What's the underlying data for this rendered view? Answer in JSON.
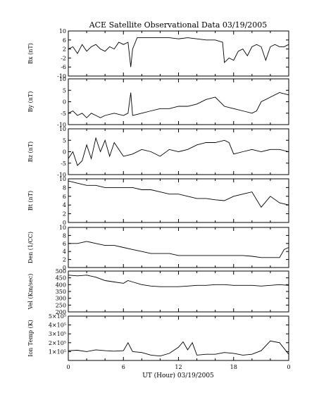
{
  "chart_data": {
    "type": "line",
    "title": "ACE Satellite Observational Data  03/19/2005",
    "xlabel": "UT (Hour)  03/19/2005",
    "x_ticks": [
      "0",
      "6",
      "12",
      "18",
      "0"
    ],
    "xlim": [
      0,
      24
    ],
    "line_color": "#000000",
    "grid": false,
    "panels": [
      {
        "ylabel": "Bx (nT)",
        "ylim": [
          -10,
          10
        ],
        "y_ticks": [
          "10",
          "6",
          "2",
          "-2",
          "-6",
          "-10"
        ],
        "series": [
          {
            "x": [
              0,
              0.5,
              1,
              1.5,
              2,
              2.5,
              3,
              3.5,
              4,
              4.5,
              5,
              5.5,
              6,
              6.5,
              6.8,
              7,
              7.5,
              8,
              9,
              10,
              11,
              12,
              13,
              14,
              15,
              16,
              16.8,
              17,
              17.5,
              18,
              18.5,
              19,
              19.5,
              20,
              20.5,
              21,
              21.5,
              22,
              22.5,
              23,
              23.5,
              24
            ],
            "y": [
              2,
              3,
              0,
              4,
              1,
              3,
              4,
              2,
              1,
              3,
              2,
              5,
              4,
              5,
              -6,
              2,
              7,
              7,
              7,
              7,
              7,
              6.5,
              7,
              6.5,
              6,
              6,
              5,
              -4,
              -2,
              -3,
              1,
              2,
              -1,
              3,
              4,
              3,
              -3,
              3,
              4,
              3,
              3,
              4
            ]
          }
        ]
      },
      {
        "ylabel": "By (nT)",
        "ylim": [
          -10,
          10
        ],
        "y_ticks": [
          "10",
          "5",
          "0",
          "-5",
          "-10"
        ],
        "series": [
          {
            "x": [
              0,
              0.5,
              1,
              1.5,
              2,
              2.5,
              3,
              3.5,
              4,
              5,
              6,
              6.5,
              6.8,
              7,
              8,
              9,
              10,
              11,
              12,
              13,
              14,
              15,
              16,
              17,
              18,
              19,
              20,
              20.5,
              21,
              22,
              23,
              24
            ],
            "y": [
              -5,
              -4,
              -6,
              -5,
              -7,
              -5,
              -6,
              -7,
              -6,
              -5,
              -6,
              -5,
              4,
              -6,
              -5,
              -4,
              -3,
              -3,
              -2,
              -2,
              -1,
              1,
              2,
              -2,
              -3,
              -4,
              -5,
              -4,
              0,
              2,
              4,
              3
            ]
          }
        ]
      },
      {
        "ylabel": "Bz (nT)",
        "ylim": [
          -10,
          10
        ],
        "y_ticks": [
          "10",
          "5",
          "0",
          "-5",
          "-10"
        ],
        "series": [
          {
            "x": [
              0,
              0.5,
              1,
              1.5,
              2,
              2.5,
              3,
              3.5,
              4,
              4.5,
              5,
              5.5,
              6,
              7,
              8,
              9,
              10,
              11,
              12,
              13,
              14,
              15,
              16,
              17,
              17.5,
              18,
              19,
              20,
              21,
              22,
              23,
              24
            ],
            "y": [
              -3,
              0,
              -6,
              -4,
              3,
              -3,
              6,
              0,
              5,
              -2,
              4,
              1,
              -2,
              -1,
              1,
              0,
              -2,
              1,
              0,
              1,
              3,
              4,
              4,
              5,
              4,
              -1,
              0,
              1,
              0,
              1,
              1,
              0
            ]
          }
        ]
      },
      {
        "ylabel": "Bt (nT)",
        "ylim": [
          0,
          10
        ],
        "y_ticks": [
          "10",
          "8",
          "6",
          "4",
          "2",
          "0"
        ],
        "series": [
          {
            "x": [
              0,
              1,
              2,
              3,
              4,
              5,
              6,
              7,
              8,
              9,
              10,
              11,
              12,
              13,
              14,
              15,
              16,
              17,
              18,
              19,
              20,
              21,
              22,
              23,
              24
            ],
            "y": [
              9.5,
              9,
              8.5,
              8.5,
              8,
              8,
              8,
              8,
              7.5,
              7.5,
              7,
              6.5,
              6.5,
              6,
              5.5,
              5.5,
              5.2,
              5,
              6,
              6.5,
              7,
              3.5,
              6,
              4.5,
              4
            ]
          }
        ]
      },
      {
        "ylabel": "Den (1/CC)",
        "ylim": [
          0,
          10
        ],
        "y_ticks": [
          "10",
          "8",
          "6",
          "4",
          "2",
          "0"
        ],
        "series": [
          {
            "x": [
              0,
              1,
              2,
              3,
              4,
              5,
              6,
              7,
              8,
              9,
              10,
              11,
              12,
              13,
              14,
              15,
              16,
              17,
              18,
              19,
              20,
              21,
              22,
              23,
              23.5,
              24
            ],
            "y": [
              6,
              6,
              6.5,
              6,
              5.5,
              5.5,
              5,
              4.5,
              4,
              3.5,
              3.5,
              3.5,
              3,
              3,
              3,
              3,
              3,
              3,
              3,
              3,
              2.8,
              2.5,
              2.5,
              2.5,
              4.5,
              5
            ]
          }
        ]
      },
      {
        "ylabel": "Vel (Km/sec)",
        "ylim": [
          200,
          500
        ],
        "y_ticks": [
          "500",
          "450",
          "400",
          "350",
          "300",
          "250",
          "200"
        ],
        "series": [
          {
            "x": [
              0,
              1,
              2,
              3,
              4,
              5,
              6,
              6.5,
              7,
              8,
              9,
              10,
              11,
              12,
              13,
              14,
              15,
              16,
              17,
              18,
              19,
              20,
              21,
              22,
              23,
              24
            ],
            "y": [
              470,
              465,
              470,
              455,
              430,
              420,
              410,
              430,
              420,
              400,
              390,
              385,
              385,
              385,
              390,
              395,
              395,
              400,
              400,
              395,
              395,
              395,
              390,
              395,
              400,
              395
            ]
          }
        ]
      },
      {
        "ylabel": "Ion Temp (K)",
        "ylim": [
          0,
          500000
        ],
        "y_ticks": [
          "5×10⁵",
          "4×10⁵",
          "3×10⁵",
          "2×10⁵",
          "1×10⁵"
        ],
        "series": [
          {
            "x": [
              0,
              1,
              2,
              3,
              4,
              5,
              6,
              6.5,
              7,
              8,
              9,
              10,
              11,
              12,
              12.5,
              13,
              13.5,
              14,
              15,
              16,
              17,
              18,
              19,
              20,
              21,
              22,
              23,
              24
            ],
            "y": [
              110000,
              115000,
              100000,
              120000,
              110000,
              105000,
              110000,
              200000,
              100000,
              90000,
              60000,
              50000,
              80000,
              150000,
              210000,
              120000,
              200000,
              60000,
              70000,
              70000,
              90000,
              80000,
              60000,
              70000,
              110000,
              220000,
              200000,
              70000
            ]
          }
        ]
      }
    ]
  }
}
